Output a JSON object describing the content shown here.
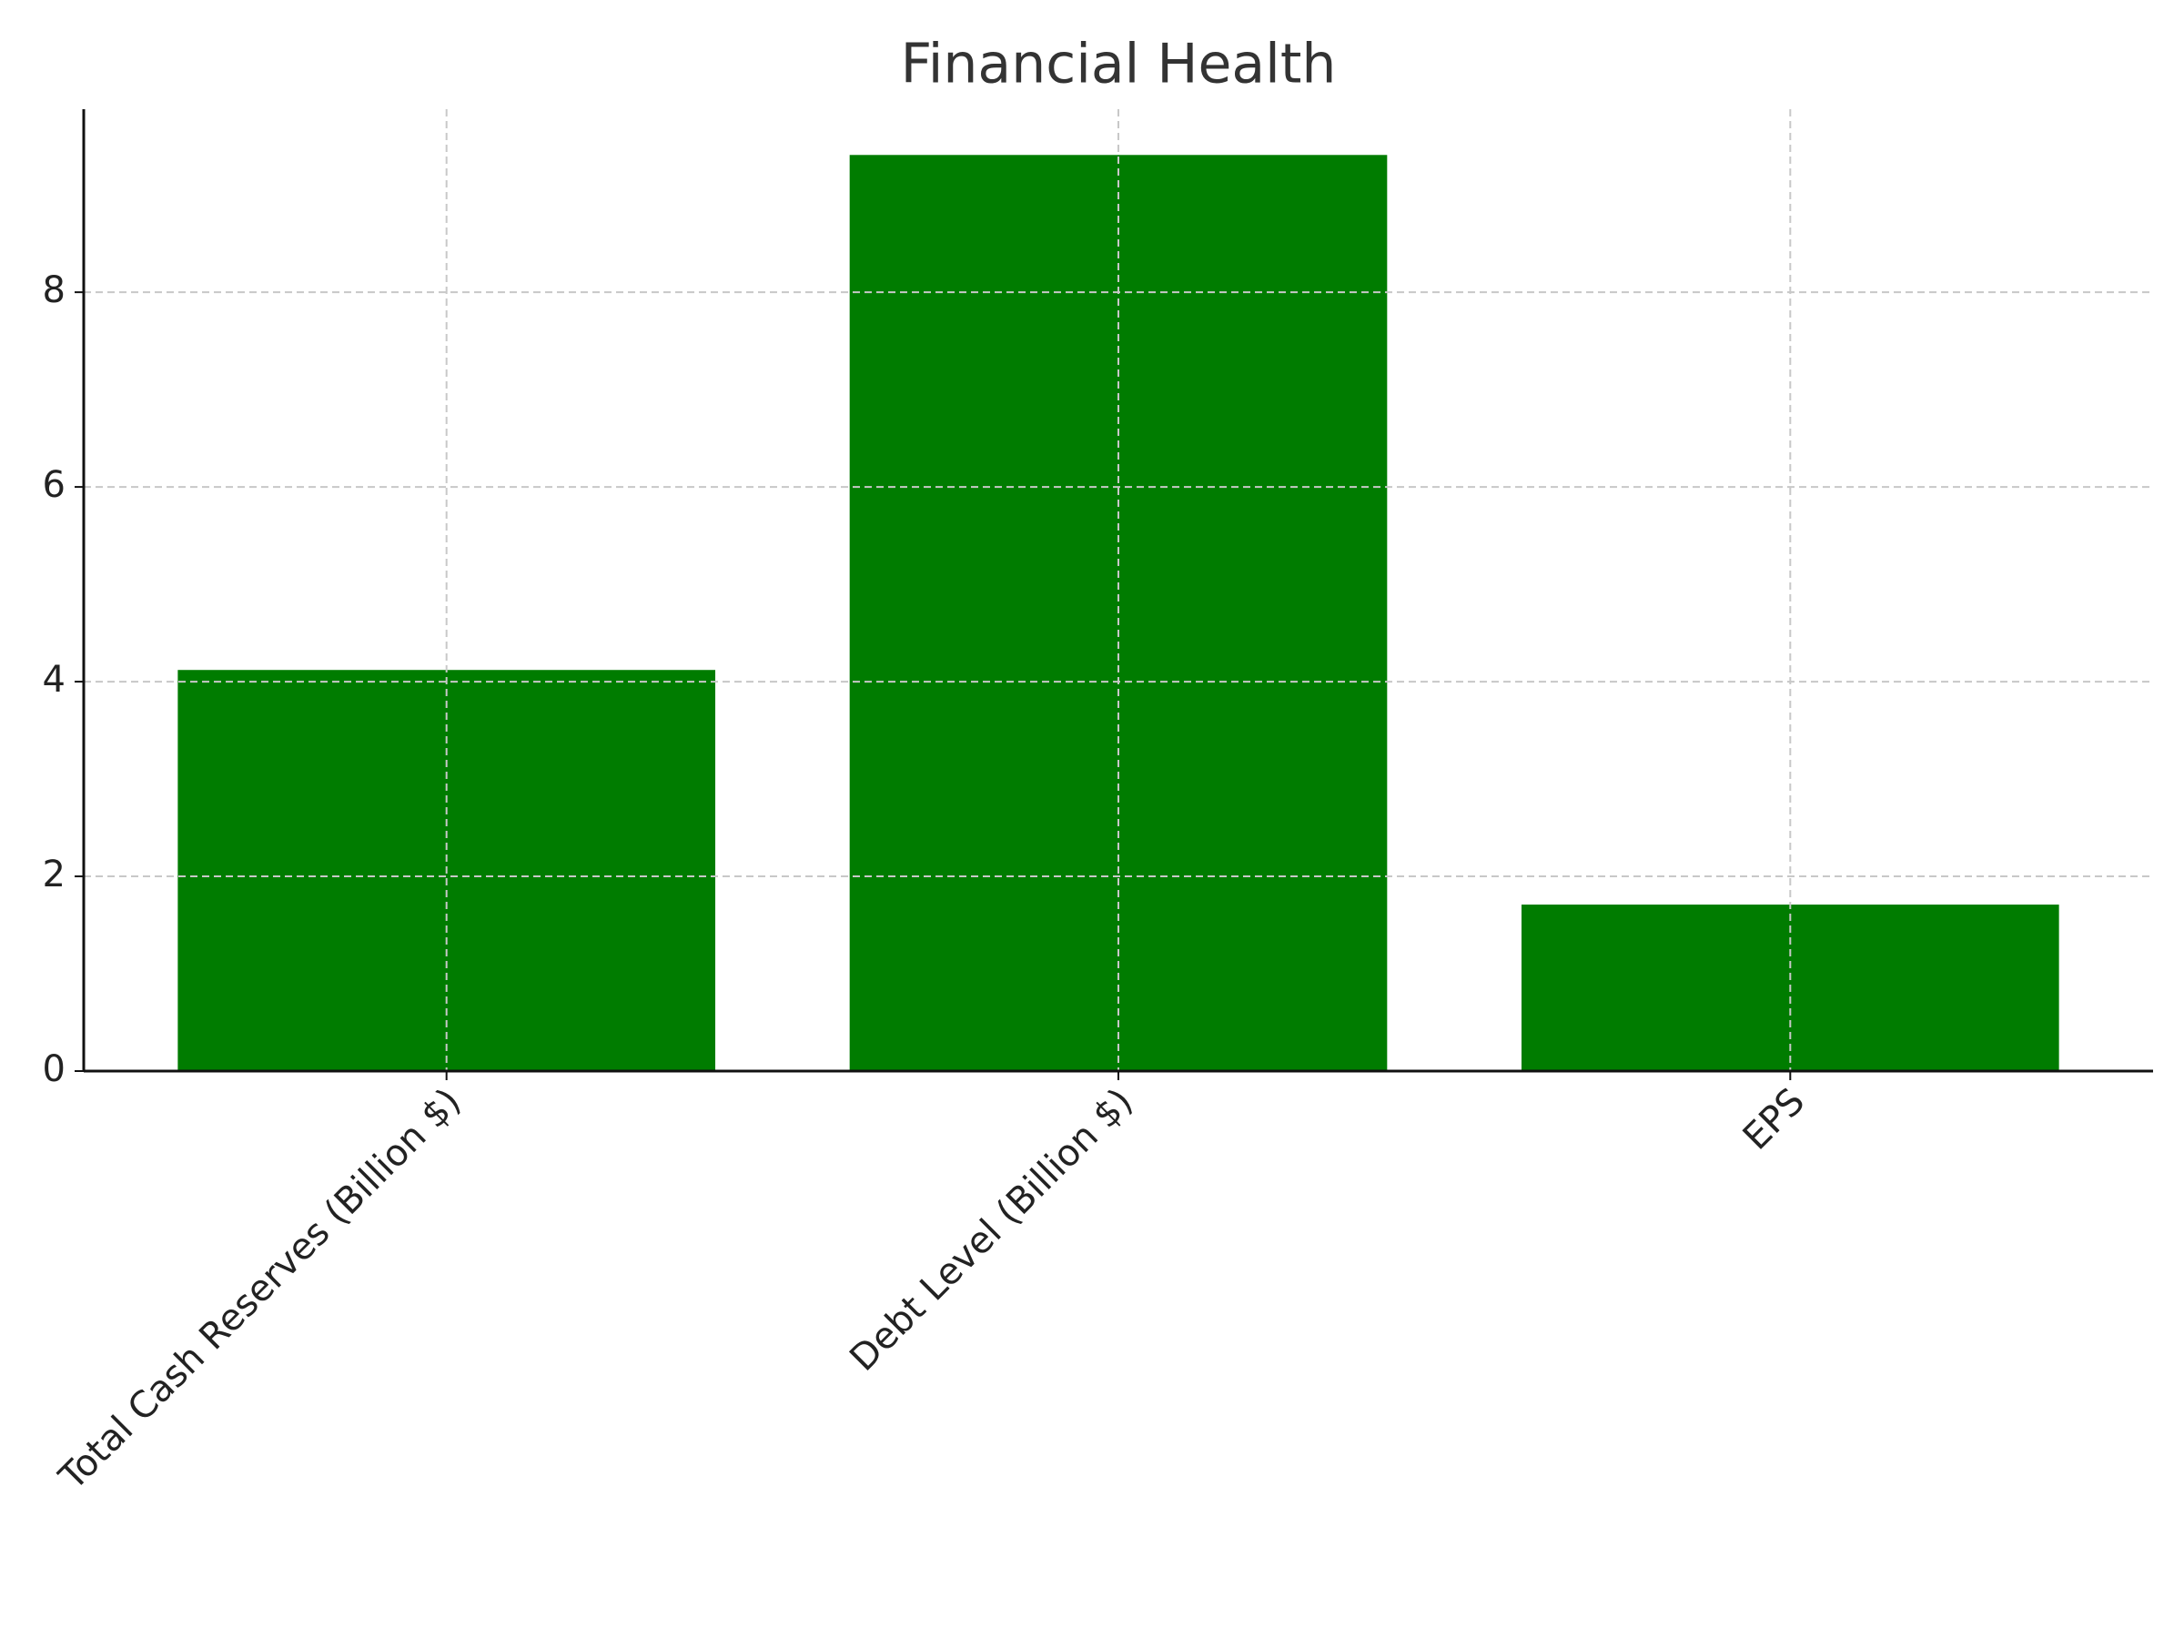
{
  "chart_data": {
    "type": "bar",
    "title": "Financial Health",
    "categories": [
      "Total Cash Reserves (Billion $)",
      "Debt Level (Billion $)",
      "EPS"
    ],
    "values": [
      4.12,
      9.41,
      1.71
    ],
    "color": "#007c00",
    "ylim": [
      0,
      9.88
    ],
    "yticks": [
      0,
      2,
      4,
      6,
      8
    ],
    "grid": true
  }
}
